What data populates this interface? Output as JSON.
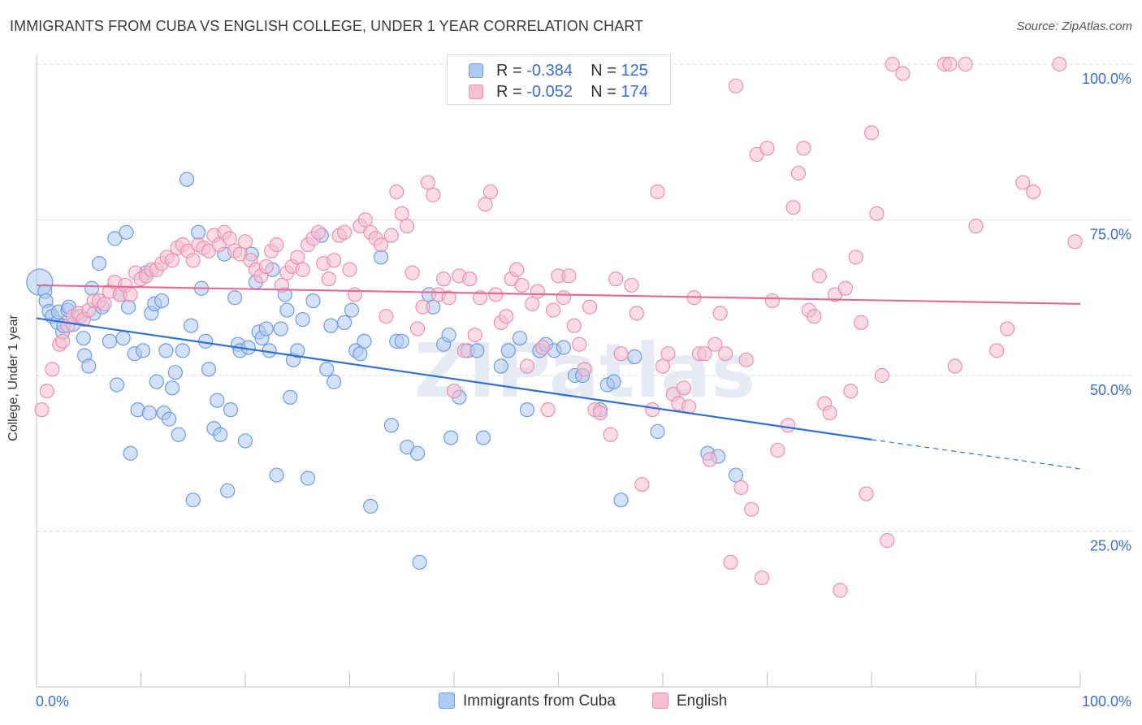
{
  "title": "IMMIGRANTS FROM CUBA VS ENGLISH COLLEGE, UNDER 1 YEAR CORRELATION CHART",
  "source": "Source: ZipAtlas.com",
  "watermark": "ZIPatlas",
  "legend": {
    "rows": [
      {
        "r_label": "R = ",
        "r_value": "-0.384",
        "n_label": "N = ",
        "n_value": "125"
      },
      {
        "r_label": "R = ",
        "r_value": "-0.052",
        "n_label": "N = ",
        "n_value": "174"
      }
    ]
  },
  "bottom_legend": {
    "items": [
      {
        "label": "Immigrants from Cuba"
      },
      {
        "label": "English"
      }
    ]
  },
  "colors": {
    "blue_fill": "#aecbf3",
    "blue_stroke": "#6f9be0",
    "blue_line": "#2f6fd3",
    "pink_fill": "#f7bfd2",
    "pink_stroke": "#ea8fb0",
    "pink_line": "#e36b97",
    "grid": "#d9d9d9",
    "axis_text": "#3a6fd0"
  },
  "chart_data": {
    "type": "scatter",
    "title": "IMMIGRANTS FROM CUBA VS ENGLISH COLLEGE, UNDER 1 YEAR CORRELATION CHART",
    "xlabel": "",
    "ylabel": "College, Under 1 year",
    "xlim": [
      0,
      100
    ],
    "ylim": [
      0,
      100
    ],
    "x_tick_labels": [
      "0.0%",
      "100.0%"
    ],
    "y_tick_labels": [
      "25.0%",
      "50.0%",
      "75.0%",
      "100.0%"
    ],
    "y_ticks": [
      25,
      50,
      75,
      100
    ],
    "grid": true,
    "legend_position": "top-center",
    "series": [
      {
        "name": "Immigrants from Cuba",
        "r": -0.384,
        "n": 125,
        "trend": {
          "x0": 0,
          "y0": 59.2,
          "x1": 80,
          "y1": 39.7,
          "dash_to_x": 100,
          "dash_to_y": 35.0
        },
        "points": [
          [
            0.3,
            65.0
          ],
          [
            0.8,
            63.5
          ],
          [
            0.9,
            62.0
          ],
          [
            1.2,
            60.3
          ],
          [
            1.5,
            59.5
          ],
          [
            2.0,
            58.5
          ],
          [
            2.1,
            60.2
          ],
          [
            2.5,
            57.0
          ],
          [
            2.6,
            58.0
          ],
          [
            3.0,
            60.5
          ],
          [
            3.1,
            61.0
          ],
          [
            3.5,
            58.2
          ],
          [
            4.2,
            59.5
          ],
          [
            4.5,
            56.0
          ],
          [
            4.6,
            53.2
          ],
          [
            5.0,
            51.5
          ],
          [
            5.3,
            64.0
          ],
          [
            5.5,
            60.0
          ],
          [
            6.0,
            68.0
          ],
          [
            6.3,
            61.0
          ],
          [
            7.0,
            55.5
          ],
          [
            7.5,
            72.0
          ],
          [
            7.7,
            48.5
          ],
          [
            8.0,
            63.0
          ],
          [
            8.3,
            56.0
          ],
          [
            8.6,
            73.0
          ],
          [
            8.8,
            61.0
          ],
          [
            9.0,
            37.5
          ],
          [
            9.4,
            53.5
          ],
          [
            9.7,
            44.5
          ],
          [
            10.2,
            54.0
          ],
          [
            10.5,
            66.5
          ],
          [
            10.8,
            44.0
          ],
          [
            11.0,
            60.0
          ],
          [
            11.3,
            61.5
          ],
          [
            11.5,
            49.0
          ],
          [
            12.0,
            62.0
          ],
          [
            12.2,
            44.0
          ],
          [
            12.4,
            54.0
          ],
          [
            12.7,
            43.0
          ],
          [
            13.0,
            48.0
          ],
          [
            13.3,
            50.5
          ],
          [
            13.6,
            40.5
          ],
          [
            14.0,
            54.0
          ],
          [
            14.4,
            81.5
          ],
          [
            14.8,
            58.0
          ],
          [
            15.0,
            30.0
          ],
          [
            15.5,
            73.0
          ],
          [
            15.8,
            64.0
          ],
          [
            16.2,
            55.5
          ],
          [
            16.5,
            51.0
          ],
          [
            17.0,
            41.5
          ],
          [
            17.3,
            46.0
          ],
          [
            17.6,
            40.5
          ],
          [
            18.0,
            69.5
          ],
          [
            18.3,
            31.5
          ],
          [
            18.6,
            44.5
          ],
          [
            19.0,
            62.5
          ],
          [
            19.3,
            55.0
          ],
          [
            19.5,
            54.0
          ],
          [
            20.0,
            39.5
          ],
          [
            20.3,
            54.5
          ],
          [
            20.6,
            69.5
          ],
          [
            21.0,
            65.0
          ],
          [
            21.3,
            57.0
          ],
          [
            21.6,
            56.0
          ],
          [
            22.0,
            57.5
          ],
          [
            22.3,
            54.0
          ],
          [
            22.6,
            67.0
          ],
          [
            23.0,
            34.0
          ],
          [
            23.4,
            57.5
          ],
          [
            23.8,
            63.0
          ],
          [
            24.0,
            60.5
          ],
          [
            24.3,
            46.5
          ],
          [
            24.6,
            52.5
          ],
          [
            25.0,
            54.0
          ],
          [
            25.5,
            59.0
          ],
          [
            26.0,
            33.5
          ],
          [
            26.5,
            62.0
          ],
          [
            27.3,
            72.5
          ],
          [
            27.8,
            51.0
          ],
          [
            28.2,
            58.0
          ],
          [
            28.5,
            49.0
          ],
          [
            29.5,
            58.5
          ],
          [
            30.2,
            60.5
          ],
          [
            30.6,
            54.0
          ],
          [
            31.0,
            53.5
          ],
          [
            31.4,
            55.5
          ],
          [
            32.0,
            29.0
          ],
          [
            33.0,
            69.0
          ],
          [
            34.0,
            42.0
          ],
          [
            34.5,
            55.5
          ],
          [
            35.0,
            55.5
          ],
          [
            35.5,
            38.5
          ],
          [
            36.5,
            37.5
          ],
          [
            37.6,
            63.0
          ],
          [
            38.0,
            61.0
          ],
          [
            39.0,
            55.0
          ],
          [
            39.5,
            56.5
          ],
          [
            39.7,
            40.0
          ],
          [
            40.5,
            46.5
          ],
          [
            41.3,
            54.0
          ],
          [
            42.2,
            54.0
          ],
          [
            42.8,
            40.0
          ],
          [
            44.5,
            51.5
          ],
          [
            45.2,
            54.0
          ],
          [
            46.3,
            56.0
          ],
          [
            47.0,
            44.5
          ],
          [
            48.2,
            54.0
          ],
          [
            48.8,
            55.0
          ],
          [
            49.6,
            54.0
          ],
          [
            50.5,
            54.5
          ],
          [
            51.6,
            50.0
          ],
          [
            52.3,
            50.0
          ],
          [
            54.0,
            44.5
          ],
          [
            54.7,
            48.5
          ],
          [
            55.3,
            49.0
          ],
          [
            56.0,
            30.0
          ],
          [
            57.3,
            53.0
          ],
          [
            59.5,
            41.0
          ],
          [
            64.3,
            37.5
          ],
          [
            65.3,
            37.0
          ],
          [
            67.0,
            34.0
          ],
          [
            36.7,
            20.0
          ]
        ]
      },
      {
        "name": "English",
        "r": -0.052,
        "n": 174,
        "trend": {
          "x0": 0,
          "y0": 64.5,
          "x1": 100,
          "y1": 61.5
        },
        "points": [
          [
            0.5,
            44.5
          ],
          [
            1.0,
            47.5
          ],
          [
            1.5,
            51.0
          ],
          [
            2.2,
            55.0
          ],
          [
            2.5,
            55.5
          ],
          [
            3.0,
            58.0
          ],
          [
            3.5,
            59.5
          ],
          [
            4.0,
            60.0
          ],
          [
            4.5,
            59.0
          ],
          [
            5.0,
            60.5
          ],
          [
            5.5,
            62.0
          ],
          [
            6.0,
            62.0
          ],
          [
            6.5,
            61.5
          ],
          [
            7.0,
            63.5
          ],
          [
            7.5,
            65.0
          ],
          [
            8.0,
            63.0
          ],
          [
            8.5,
            64.5
          ],
          [
            9.0,
            63.0
          ],
          [
            9.5,
            66.5
          ],
          [
            10.0,
            65.5
          ],
          [
            10.5,
            66.0
          ],
          [
            11.0,
            67.0
          ],
          [
            11.5,
            67.0
          ],
          [
            12.0,
            68.0
          ],
          [
            12.5,
            69.0
          ],
          [
            13.0,
            68.5
          ],
          [
            13.5,
            70.5
          ],
          [
            14.0,
            71.0
          ],
          [
            14.5,
            70.0
          ],
          [
            15.0,
            68.5
          ],
          [
            15.5,
            71.0
          ],
          [
            16.0,
            70.5
          ],
          [
            16.5,
            70.0
          ],
          [
            17.0,
            72.5
          ],
          [
            17.5,
            71.0
          ],
          [
            18.0,
            73.0
          ],
          [
            18.5,
            72.0
          ],
          [
            19.0,
            70.0
          ],
          [
            19.5,
            69.5
          ],
          [
            20.0,
            71.5
          ],
          [
            20.5,
            68.5
          ],
          [
            21.0,
            67.0
          ],
          [
            21.5,
            66.0
          ],
          [
            22.0,
            67.5
          ],
          [
            22.5,
            70.0
          ],
          [
            23.0,
            71.0
          ],
          [
            23.5,
            64.5
          ],
          [
            24.0,
            66.5
          ],
          [
            24.5,
            67.5
          ],
          [
            25.0,
            69.0
          ],
          [
            25.5,
            67.0
          ],
          [
            26.0,
            71.0
          ],
          [
            26.5,
            72.0
          ],
          [
            27.0,
            73.0
          ],
          [
            27.5,
            68.0
          ],
          [
            28.0,
            65.5
          ],
          [
            28.5,
            68.5
          ],
          [
            29.0,
            72.5
          ],
          [
            29.5,
            73.0
          ],
          [
            30.0,
            67.0
          ],
          [
            30.5,
            63.0
          ],
          [
            31.0,
            74.0
          ],
          [
            31.5,
            75.0
          ],
          [
            32.0,
            73.0
          ],
          [
            32.5,
            72.0
          ],
          [
            33.0,
            71.0
          ],
          [
            33.5,
            59.5
          ],
          [
            34.0,
            72.5
          ],
          [
            34.5,
            79.5
          ],
          [
            35.0,
            76.0
          ],
          [
            35.5,
            74.0
          ],
          [
            36.0,
            66.5
          ],
          [
            36.5,
            57.5
          ],
          [
            37.0,
            61.0
          ],
          [
            37.5,
            81.0
          ],
          [
            38.0,
            79.0
          ],
          [
            38.5,
            63.0
          ],
          [
            39.0,
            65.5
          ],
          [
            39.5,
            62.5
          ],
          [
            40.0,
            47.5
          ],
          [
            40.5,
            66.0
          ],
          [
            41.0,
            54.0
          ],
          [
            41.5,
            65.5
          ],
          [
            42.0,
            56.5
          ],
          [
            42.5,
            62.5
          ],
          [
            43.0,
            77.5
          ],
          [
            43.5,
            79.5
          ],
          [
            44.0,
            63.0
          ],
          [
            44.5,
            58.5
          ],
          [
            45.0,
            59.5
          ],
          [
            45.5,
            65.5
          ],
          [
            46.0,
            67.0
          ],
          [
            46.5,
            64.5
          ],
          [
            47.0,
            51.5
          ],
          [
            47.5,
            61.5
          ],
          [
            48.0,
            63.5
          ],
          [
            48.5,
            54.5
          ],
          [
            49.0,
            44.5
          ],
          [
            49.5,
            60.5
          ],
          [
            50.0,
            66.0
          ],
          [
            50.5,
            62.5
          ],
          [
            51.0,
            66.0
          ],
          [
            51.5,
            58.0
          ],
          [
            52.0,
            55.0
          ],
          [
            52.5,
            51.0
          ],
          [
            53.0,
            61.0
          ],
          [
            53.5,
            44.5
          ],
          [
            54.0,
            44.0
          ],
          [
            55.0,
            40.5
          ],
          [
            55.5,
            65.5
          ],
          [
            56.0,
            53.5
          ],
          [
            57.0,
            64.5
          ],
          [
            57.5,
            60.0
          ],
          [
            58.0,
            32.5
          ],
          [
            59.0,
            44.5
          ],
          [
            59.5,
            79.5
          ],
          [
            60.0,
            51.5
          ],
          [
            60.5,
            53.5
          ],
          [
            61.0,
            47.0
          ],
          [
            61.5,
            45.5
          ],
          [
            62.0,
            48.0
          ],
          [
            62.5,
            45.0
          ],
          [
            63.0,
            62.5
          ],
          [
            63.5,
            53.5
          ],
          [
            64.0,
            53.5
          ],
          [
            64.5,
            36.5
          ],
          [
            65.0,
            55.0
          ],
          [
            65.5,
            60.0
          ],
          [
            66.0,
            53.5
          ],
          [
            66.5,
            20.0
          ],
          [
            67.0,
            96.5
          ],
          [
            67.5,
            32.0
          ],
          [
            68.0,
            52.5
          ],
          [
            68.5,
            28.5
          ],
          [
            69.0,
            85.5
          ],
          [
            69.5,
            17.5
          ],
          [
            70.0,
            86.5
          ],
          [
            70.5,
            62.0
          ],
          [
            71.0,
            38.0
          ],
          [
            72.0,
            42.0
          ],
          [
            72.5,
            77.0
          ],
          [
            73.0,
            82.5
          ],
          [
            73.5,
            86.5
          ],
          [
            74.0,
            60.5
          ],
          [
            74.5,
            59.5
          ],
          [
            75.0,
            66.0
          ],
          [
            75.5,
            45.5
          ],
          [
            76.0,
            44.0
          ],
          [
            76.5,
            63.0
          ],
          [
            77.0,
            15.5
          ],
          [
            77.5,
            64.0
          ],
          [
            78.0,
            47.5
          ],
          [
            78.5,
            69.0
          ],
          [
            79.0,
            58.5
          ],
          [
            79.5,
            31.0
          ],
          [
            80.0,
            89.0
          ],
          [
            80.5,
            76.0
          ],
          [
            81.0,
            50.0
          ],
          [
            81.5,
            23.5
          ],
          [
            82.0,
            100.0
          ],
          [
            83.0,
            98.5
          ],
          [
            87.0,
            100.0
          ],
          [
            87.5,
            100.0
          ],
          [
            88.0,
            51.5
          ],
          [
            89.0,
            100.0
          ],
          [
            90.0,
            74.0
          ],
          [
            92.0,
            54.0
          ],
          [
            93.0,
            57.5
          ],
          [
            94.5,
            81.0
          ],
          [
            95.5,
            79.5
          ],
          [
            98.0,
            100.0
          ],
          [
            99.5,
            71.5
          ]
        ]
      }
    ]
  }
}
